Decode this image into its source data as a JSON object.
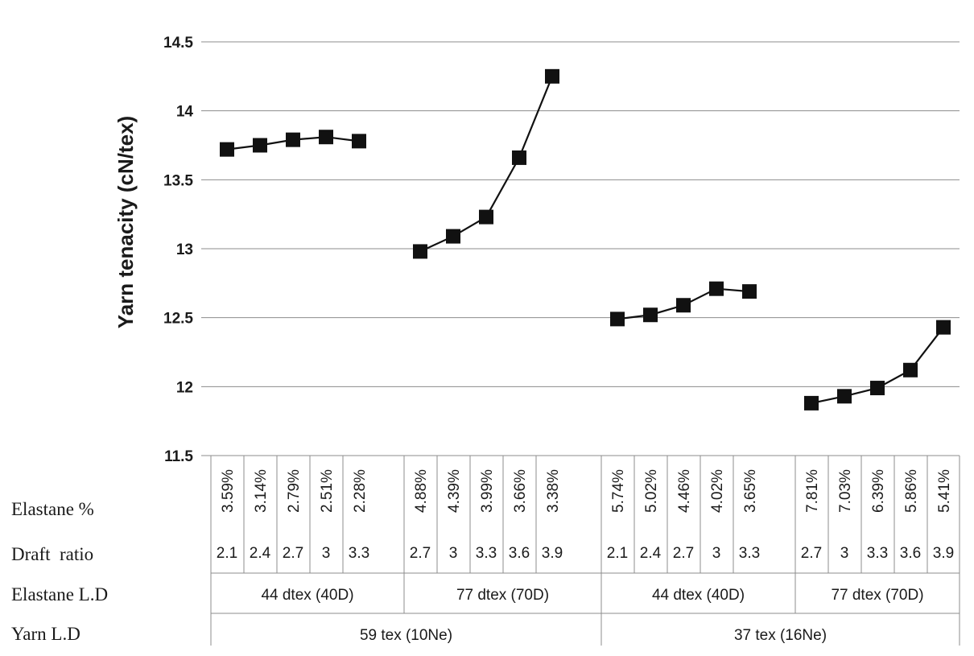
{
  "chart_data": {
    "type": "line",
    "ylabel": "Yarn tenacity (cN/tex)",
    "ylim": [
      11.5,
      14.5
    ],
    "yticks": [
      "11.5",
      "12",
      "12.5",
      "13",
      "13.5",
      "14",
      "14.5"
    ],
    "grid": true,
    "marker": "square",
    "row_labels": [
      "Elastane %",
      "Draft  ratio",
      "Elastane L.D",
      "Yarn L.D"
    ],
    "series": [
      {
        "elastane_pct": [
          "3.59%",
          "3.14%",
          "2.79%",
          "2.51%",
          "2.28%"
        ],
        "draft_ratio": [
          "2.1",
          "2.4",
          "2.7",
          "3",
          "3.3"
        ],
        "elastane_ld": "44 dtex (40D)",
        "yarn_ld": "59 tex (10Ne)",
        "values": [
          13.72,
          13.75,
          13.79,
          13.81,
          13.78
        ]
      },
      {
        "elastane_pct": [
          "4.88%",
          "4.39%",
          "3.99%",
          "3.66%",
          "3.38%"
        ],
        "draft_ratio": [
          "2.7",
          "3",
          "3.3",
          "3.6",
          "3.9"
        ],
        "elastane_ld": "77 dtex (70D)",
        "yarn_ld": "59 tex (10Ne)",
        "values": [
          12.98,
          13.09,
          13.23,
          13.66,
          14.25
        ]
      },
      {
        "elastane_pct": [
          "5.74%",
          "5.02%",
          "4.46%",
          "4.02%",
          "3.65%"
        ],
        "draft_ratio": [
          "2.1",
          "2.4",
          "2.7",
          "3",
          "3.3"
        ],
        "elastane_ld": "44 dtex (40D)",
        "yarn_ld": "37 tex (16Ne)",
        "values": [
          12.49,
          12.52,
          12.59,
          12.71,
          12.69
        ]
      },
      {
        "elastane_pct": [
          "7.81%",
          "7.03%",
          "6.39%",
          "5.86%",
          "5.41%"
        ],
        "draft_ratio": [
          "2.7",
          "3",
          "3.3",
          "3.6",
          "3.9"
        ],
        "elastane_ld": "77 dtex (70D)",
        "yarn_ld": "37 tex (16Ne)",
        "values": [
          11.88,
          11.93,
          11.99,
          12.12,
          12.43
        ]
      }
    ],
    "yarn_ld_groups": [
      "59 tex (10Ne)",
      "37 tex (16Ne)"
    ]
  }
}
